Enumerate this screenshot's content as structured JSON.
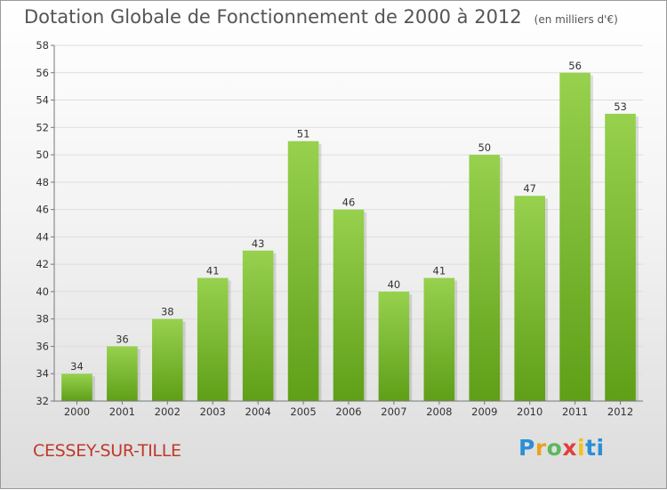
{
  "title": "Dotation Globale de Fonctionnement de 2000 à 2012",
  "subtitle": "(en milliers d'€)",
  "commune": "CESSEY-SUR-TILLE",
  "logo_letters": [
    "P",
    "r",
    "o",
    "x",
    "i",
    "ti"
  ],
  "colors": {
    "bar_top": "#97d14e",
    "bar_bottom": "#5f9f18",
    "grid": "#dddddd",
    "commune": "#c0392b"
  },
  "chart_data": {
    "type": "bar",
    "title": "Dotation Globale de Fonctionnement de 2000 à 2012",
    "subtitle": "(en milliers d'€)",
    "categories": [
      "2000",
      "2001",
      "2002",
      "2003",
      "2004",
      "2005",
      "2006",
      "2007",
      "2008",
      "2009",
      "2010",
      "2011",
      "2012"
    ],
    "values": [
      34,
      36,
      38,
      41,
      43,
      51,
      46,
      40,
      41,
      50,
      47,
      56,
      53
    ],
    "ylim": [
      32,
      58
    ],
    "yticks": [
      32,
      34,
      36,
      38,
      40,
      42,
      44,
      46,
      48,
      50,
      52,
      54,
      56,
      58
    ],
    "grid": true,
    "xlabel": "",
    "ylabel": ""
  }
}
